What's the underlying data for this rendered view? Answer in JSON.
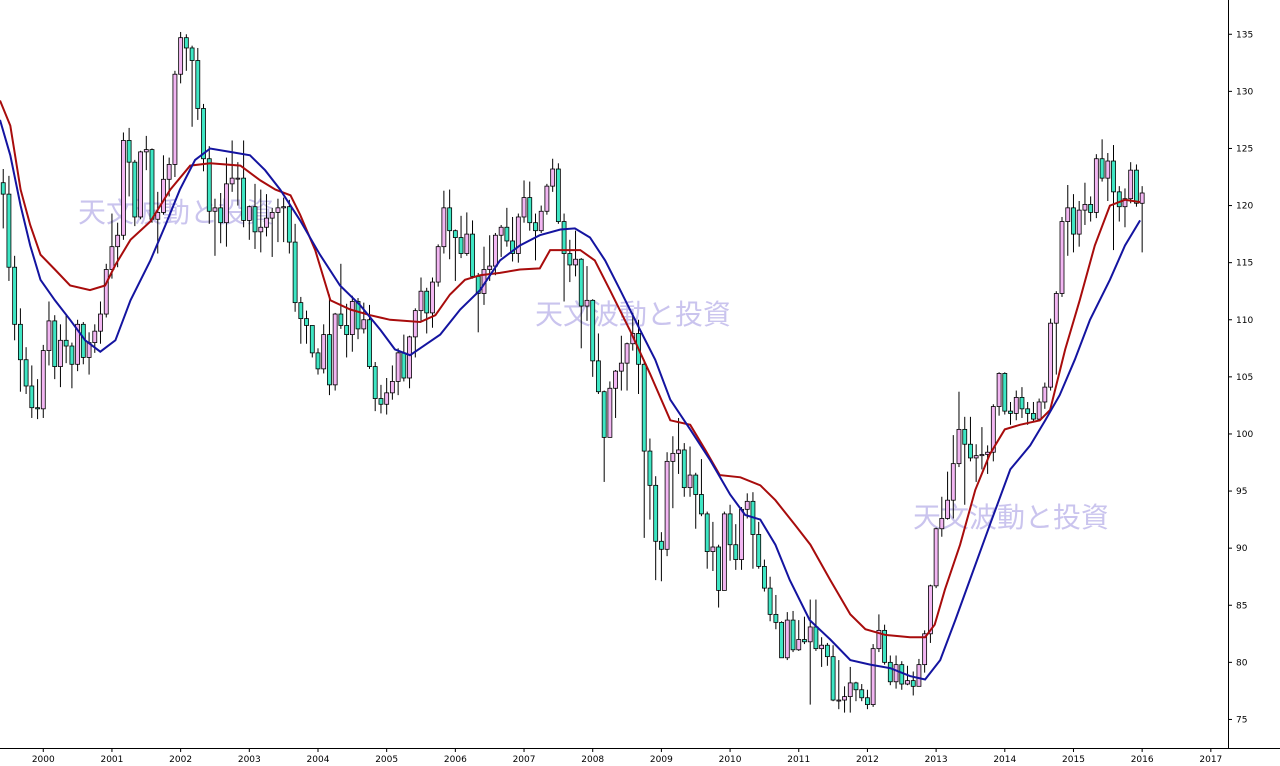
{
  "chart_data": {
    "type": "candlestick",
    "watermarks": [
      "天文波動と投資",
      "天文波動と投資",
      "天文波動と投資"
    ],
    "up_color": "#f2b6f2",
    "down_color": "#3ee6c4",
    "xlim": [
      1999.37,
      2017.25
    ],
    "xticks": [
      2000,
      2001,
      2002,
      2003,
      2004,
      2005,
      2006,
      2007,
      2008,
      2009,
      2010,
      2011,
      2012,
      2013,
      2014,
      2015,
      2016,
      2017
    ],
    "ylim": [
      72.5,
      138
    ],
    "yticks": [
      75,
      80,
      85,
      90,
      95,
      100,
      105,
      110,
      115,
      120,
      125,
      130,
      135
    ],
    "x": [
      1999.417,
      1999.5,
      1999.583,
      1999.667,
      1999.75,
      1999.833,
      1999.917,
      2000,
      2000.083,
      2000.167,
      2000.25,
      2000.333,
      2000.417,
      2000.5,
      2000.583,
      2000.667,
      2000.75,
      2000.833,
      2000.917,
      2001,
      2001.083,
      2001.167,
      2001.25,
      2001.333,
      2001.417,
      2001.5,
      2001.583,
      2001.667,
      2001.75,
      2001.833,
      2001.917,
      2002,
      2002.083,
      2002.167,
      2002.25,
      2002.333,
      2002.417,
      2002.5,
      2002.583,
      2002.667,
      2002.75,
      2002.833,
      2002.917,
      2003,
      2003.083,
      2003.167,
      2003.25,
      2003.333,
      2003.417,
      2003.5,
      2003.583,
      2003.667,
      2003.75,
      2003.833,
      2003.917,
      2004,
      2004.083,
      2004.167,
      2004.25,
      2004.333,
      2004.417,
      2004.5,
      2004.583,
      2004.667,
      2004.75,
      2004.833,
      2004.917,
      2005,
      2005.083,
      2005.167,
      2005.25,
      2005.333,
      2005.417,
      2005.5,
      2005.583,
      2005.667,
      2005.75,
      2005.833,
      2005.917,
      2006,
      2006.083,
      2006.167,
      2006.25,
      2006.333,
      2006.417,
      2006.5,
      2006.583,
      2006.667,
      2006.75,
      2006.833,
      2006.917,
      2007,
      2007.083,
      2007.167,
      2007.25,
      2007.333,
      2007.417,
      2007.5,
      2007.583,
      2007.667,
      2007.75,
      2007.833,
      2007.917,
      2008,
      2008.083,
      2008.167,
      2008.25,
      2008.333,
      2008.417,
      2008.5,
      2008.583,
      2008.667,
      2008.75,
      2008.833,
      2008.917,
      2009,
      2009.083,
      2009.167,
      2009.25,
      2009.333,
      2009.417,
      2009.5,
      2009.583,
      2009.667,
      2009.75,
      2009.833,
      2009.917,
      2010,
      2010.083,
      2010.167,
      2010.25,
      2010.333,
      2010.417,
      2010.5,
      2010.583,
      2010.667,
      2010.75,
      2010.833,
      2010.917,
      2011,
      2011.083,
      2011.167,
      2011.25,
      2011.333,
      2011.417,
      2011.5,
      2011.583,
      2011.667,
      2011.75,
      2011.833,
      2011.917,
      2012,
      2012.083,
      2012.167,
      2012.25,
      2012.333,
      2012.417,
      2012.5,
      2012.583,
      2012.667,
      2012.75,
      2012.833,
      2012.917,
      2013,
      2013.083,
      2013.167,
      2013.25,
      2013.333,
      2013.417,
      2013.5,
      2013.583,
      2013.667,
      2013.75,
      2013.833,
      2013.917,
      2014,
      2014.083,
      2014.167,
      2014.25,
      2014.333,
      2014.417,
      2014.5,
      2014.583,
      2014.667,
      2014.75,
      2014.833,
      2014.917,
      2015,
      2015.083,
      2015.167,
      2015.25,
      2015.333,
      2015.417,
      2015.5,
      2015.583,
      2015.667,
      2015.75,
      2015.833,
      2015.917,
      2016
    ],
    "open": [
      122.0,
      121.0,
      114.6,
      109.6,
      106.5,
      104.2,
      102.3,
      102.2,
      107.3,
      109.9,
      105.9,
      108.2,
      107.7,
      106.1,
      109.6,
      106.7,
      108.0,
      109.0,
      110.5,
      114.4,
      116.4,
      117.4,
      125.7,
      123.8,
      119.0,
      124.7,
      124.9,
      118.8,
      119.4,
      122.3,
      123.6,
      131.5,
      134.7,
      133.8,
      132.7,
      128.5,
      124.1,
      119.5,
      119.8,
      118.5,
      121.9,
      122.4,
      122.4,
      118.7,
      119.9,
      117.7,
      118.1,
      118.9,
      119.4,
      119.8,
      119.9,
      116.8,
      111.5,
      110.1,
      109.5,
      107.1,
      105.7,
      108.7,
      104.3,
      110.5,
      109.5,
      108.7,
      111.6,
      109.2,
      110.0,
      105.9,
      103.1,
      102.6,
      103.6,
      104.6,
      107.1,
      104.9,
      108.5,
      110.8,
      112.5,
      110.6,
      113.3,
      116.4,
      119.8,
      117.8,
      117.2,
      115.8,
      117.5,
      113.8,
      112.3,
      114.4,
      114.7,
      117.4,
      118.1,
      116.9,
      115.8,
      119.0,
      120.7,
      118.5,
      117.8,
      119.5,
      121.7,
      123.2,
      118.6,
      115.8,
      114.8,
      115.3,
      111.2,
      111.7,
      106.4,
      103.7,
      99.7,
      104.0,
      105.5,
      106.2,
      107.9,
      108.8,
      106.1,
      98.5,
      95.5,
      90.6,
      89.9,
      97.6,
      98.3,
      98.6,
      95.3,
      96.4,
      94.7,
      93.0,
      89.7,
      90.1,
      86.3,
      93.0,
      90.3,
      89.0,
      93.4,
      94.1,
      91.2,
      88.4,
      86.5,
      84.2,
      83.5,
      80.4,
      83.7,
      81.1,
      82.0,
      81.8,
      83.1,
      81.2,
      81.5,
      80.5,
      76.7,
      76.7,
      77.0,
      78.2,
      77.6,
      76.9,
      76.3,
      81.2,
      82.8,
      80.0,
      78.3,
      79.8,
      78.1,
      78.4,
      77.9,
      79.8,
      82.5,
      86.7,
      91.7,
      92.6,
      94.2,
      97.4,
      100.4,
      99.1,
      97.9,
      98.1,
      98.2,
      98.4,
      102.4,
      105.3,
      102.0,
      101.8,
      103.2,
      102.2,
      101.8,
      101.3,
      102.8,
      104.1,
      109.7,
      112.3,
      118.6,
      119.8,
      117.5,
      119.6,
      120.1,
      119.4,
      124.1,
      122.4,
      123.9,
      121.2,
      119.9,
      120.6,
      123.1,
      120.2
    ],
    "high": [
      123.2,
      122.6,
      115.6,
      111.0,
      107.6,
      106.0,
      104.8,
      107.8,
      111.6,
      110.4,
      109.6,
      110.5,
      108.0,
      110.0,
      109.8,
      108.9,
      109.6,
      111.6,
      114.9,
      119.3,
      118.5,
      126.4,
      126.8,
      124.0,
      124.8,
      126.1,
      125.0,
      121.2,
      124.4,
      124.2,
      131.8,
      135.2,
      135.0,
      134.0,
      133.8,
      128.9,
      125.2,
      120.6,
      121.1,
      124.2,
      125.7,
      123.8,
      125.7,
      120.0,
      121.9,
      121.4,
      121.0,
      119.8,
      120.6,
      120.7,
      120.5,
      118.4,
      112.0,
      110.8,
      109.5,
      107.5,
      109.6,
      112.2,
      110.6,
      114.9,
      111.4,
      112.1,
      111.9,
      111.5,
      111.3,
      106.3,
      104.3,
      104.9,
      106.0,
      107.5,
      108.7,
      108.6,
      111.0,
      113.7,
      112.8,
      113.7,
      116.6,
      121.3,
      121.4,
      117.9,
      119.1,
      119.4,
      118.7,
      114.1,
      116.4,
      117.4,
      117.6,
      118.3,
      119.8,
      119.0,
      119.3,
      122.2,
      122.1,
      119.3,
      120.0,
      121.9,
      124.1,
      123.7,
      119.3,
      117.0,
      117.8,
      115.4,
      114.7,
      111.8,
      108.8,
      103.8,
      104.6,
      105.6,
      108.6,
      108.0,
      110.6,
      110.0,
      106.5,
      99.6,
      96.3,
      91.4,
      98.4,
      99.8,
      101.4,
      99.2,
      98.9,
      96.6,
      97.8,
      93.2,
      92.3,
      90.3,
      93.2,
      93.8,
      92.1,
      93.6,
      94.8,
      94.9,
      92.3,
      89.0,
      87.5,
      85.9,
      83.6,
      84.4,
      84.5,
      83.7,
      84.0,
      85.5,
      85.5,
      82.2,
      81.7,
      81.5,
      80.2,
      77.9,
      79.6,
      78.3,
      78.1,
      77.6,
      81.6,
      84.2,
      83.3,
      80.6,
      80.6,
      80.1,
      79.7,
      79.2,
      80.3,
      82.8,
      86.8,
      91.8,
      94.5,
      96.7,
      99.9,
      103.7,
      101.5,
      101.5,
      99.1,
      100.6,
      99.0,
      102.6,
      105.4,
      105.4,
      102.8,
      103.8,
      104.1,
      102.8,
      102.8,
      103.1,
      104.5,
      110.1,
      112.5,
      119.0,
      121.8,
      121.0,
      120.4,
      122.0,
      120.8,
      124.5,
      125.8,
      124.6,
      125.3,
      121.7,
      121.5,
      123.8,
      123.6,
      121.7
    ],
    "low": [
      118.0,
      113.4,
      108.2,
      103.7,
      103.5,
      101.4,
      101.3,
      101.4,
      106.0,
      104.8,
      104.1,
      106.2,
      104.0,
      105.5,
      106.1,
      105.2,
      107.1,
      107.9,
      110.2,
      113.6,
      114.6,
      117.0,
      120.8,
      118.2,
      118.8,
      123.1,
      118.5,
      115.8,
      119.2,
      120.8,
      122.5,
      130.7,
      131.8,
      126.9,
      127.5,
      123.0,
      118.4,
      115.6,
      116.7,
      116.4,
      121.2,
      120.0,
      118.1,
      117.0,
      116.2,
      115.9,
      117.3,
      115.5,
      116.8,
      116.8,
      115.8,
      110.7,
      107.9,
      107.9,
      106.7,
      105.2,
      105.3,
      103.4,
      103.8,
      109.2,
      106.7,
      107.2,
      108.3,
      108.8,
      105.7,
      102.0,
      101.8,
      101.7,
      103.0,
      103.4,
      104.6,
      104.0,
      106.7,
      109.8,
      108.8,
      109.3,
      112.9,
      115.8,
      115.3,
      113.4,
      115.4,
      115.6,
      113.6,
      108.9,
      111.3,
      113.4,
      113.9,
      115.5,
      116.4,
      115.1,
      115.0,
      118.5,
      117.8,
      115.2,
      117.6,
      119.2,
      121.2,
      118.4,
      111.6,
      113.3,
      113.8,
      107.5,
      109.9,
      105.0,
      103.5,
      95.8,
      99.7,
      101.4,
      103.8,
      103.8,
      107.3,
      103.5,
      90.9,
      92.5,
      87.2,
      87.1,
      89.3,
      93.5,
      96.5,
      94.5,
      94.5,
      91.7,
      92.8,
      88.2,
      88.0,
      84.8,
      86.3,
      88.9,
      88.1,
      88.1,
      92.6,
      88.2,
      88.2,
      86.2,
      83.6,
      82.9,
      80.4,
      80.2,
      80.9,
      81.0,
      81.6,
      76.3,
      81.0,
      79.6,
      79.7,
      76.6,
      75.9,
      75.6,
      75.6,
      76.6,
      76.6,
      75.9,
      76.1,
      80.9,
      79.8,
      78.0,
      77.7,
      77.6,
      78.0,
      77.1,
      77.9,
      79.1,
      81.7,
      86.5,
      91.0,
      92.5,
      92.6,
      97.1,
      93.8,
      97.6,
      95.8,
      96.9,
      96.5,
      97.6,
      101.6,
      101.7,
      100.8,
      101.2,
      101.4,
      100.8,
      101.1,
      101.1,
      102.2,
      103.8,
      105.2,
      112.0,
      115.6,
      115.9,
      116.4,
      118.3,
      118.6,
      118.9,
      122.1,
      120.4,
      116.1,
      118.6,
      118.1,
      120.2,
      119.9,
      115.9
    ],
    "close": [
      121.0,
      114.6,
      109.6,
      106.5,
      104.2,
      102.3,
      102.2,
      107.3,
      109.9,
      105.9,
      108.2,
      107.7,
      106.1,
      109.6,
      106.7,
      108.0,
      109.0,
      110.5,
      114.4,
      116.4,
      117.4,
      125.7,
      123.8,
      119.0,
      124.7,
      124.9,
      118.8,
      119.4,
      122.3,
      123.6,
      131.5,
      134.7,
      133.8,
      132.7,
      128.5,
      124.1,
      119.5,
      119.8,
      118.5,
      121.9,
      122.4,
      122.4,
      118.7,
      119.9,
      117.7,
      118.1,
      118.9,
      119.4,
      119.8,
      119.9,
      116.8,
      111.5,
      110.1,
      109.5,
      107.1,
      105.7,
      108.7,
      104.3,
      110.5,
      109.5,
      108.7,
      111.6,
      109.2,
      110.0,
      105.9,
      103.1,
      102.6,
      103.6,
      104.6,
      107.1,
      104.9,
      108.5,
      110.8,
      112.5,
      110.6,
      113.3,
      116.4,
      119.8,
      117.8,
      117.2,
      115.8,
      117.5,
      113.8,
      112.3,
      114.4,
      114.7,
      117.4,
      118.1,
      116.9,
      115.8,
      119.0,
      120.7,
      118.5,
      117.8,
      119.5,
      121.7,
      123.2,
      118.6,
      115.8,
      114.8,
      115.3,
      111.2,
      111.7,
      106.4,
      103.7,
      99.7,
      104.0,
      105.5,
      106.2,
      107.9,
      108.8,
      106.1,
      98.5,
      95.5,
      90.6,
      89.9,
      97.6,
      98.3,
      98.6,
      95.3,
      96.4,
      94.7,
      93.0,
      89.7,
      90.1,
      86.3,
      93.0,
      90.3,
      89.0,
      93.4,
      94.1,
      91.2,
      88.4,
      86.5,
      84.2,
      83.5,
      80.4,
      83.7,
      81.1,
      82.0,
      81.8,
      83.1,
      81.2,
      81.5,
      80.5,
      76.7,
      76.7,
      77.0,
      78.2,
      77.6,
      76.9,
      76.3,
      81.2,
      82.8,
      80.0,
      78.3,
      79.8,
      78.1,
      78.4,
      77.9,
      79.8,
      82.5,
      86.7,
      91.7,
      92.6,
      94.2,
      97.4,
      100.4,
      99.1,
      97.9,
      98.1,
      98.2,
      98.4,
      102.4,
      105.3,
      102.0,
      101.8,
      103.2,
      102.2,
      101.8,
      101.3,
      102.8,
      104.1,
      109.7,
      112.3,
      118.6,
      119.8,
      117.5,
      119.6,
      120.1,
      119.4,
      124.1,
      122.4,
      123.9,
      121.2,
      119.9,
      120.6,
      123.1,
      120.2,
      121.1
    ],
    "lines": [
      {
        "color": "#a80c0c",
        "x": [
          1999.37,
          1999.52,
          1999.67,
          1999.81,
          1999.96,
          2000.17,
          2000.39,
          2000.68,
          2000.9,
          2001.05,
          2001.27,
          2001.56,
          2001.85,
          2002.14,
          2002.43,
          2002.87,
          2003.16,
          2003.38,
          2003.6,
          2003.74,
          2003.96,
          2004.18,
          2004.47,
          2004.76,
          2005.05,
          2005.49,
          2005.71,
          2005.92,
          2006.14,
          2006.36,
          2006.65,
          2006.94,
          2007.23,
          2007.38,
          2007.82,
          2008.03,
          2008.25,
          2008.54,
          2008.84,
          2009.13,
          2009.42,
          2009.64,
          2009.85,
          2010.15,
          2010.44,
          2010.66,
          2010.95,
          2011.17,
          2011.46,
          2011.75,
          2011.97,
          2012.26,
          2012.62,
          2012.84,
          2012.98,
          2013.13,
          2013.35,
          2013.57,
          2013.78,
          2014.0,
          2014.22,
          2014.51,
          2014.66,
          2014.88,
          2015.09,
          2015.31,
          2015.53,
          2015.75,
          2015.97
        ],
        "values": [
          129.2,
          127.0,
          121.4,
          118.3,
          115.7,
          114.4,
          113.0,
          112.6,
          113.0,
          114.8,
          117.0,
          118.6,
          121.4,
          123.5,
          123.7,
          123.5,
          122.2,
          121.4,
          120.9,
          119.2,
          116.1,
          111.7,
          110.9,
          110.4,
          110.0,
          109.8,
          110.4,
          112.2,
          113.5,
          113.9,
          114.1,
          114.4,
          114.5,
          116.1,
          116.1,
          115.2,
          112.6,
          109.1,
          105.2,
          101.2,
          100.8,
          98.6,
          96.4,
          96.2,
          95.5,
          94.2,
          92.0,
          90.3,
          87.2,
          84.2,
          82.9,
          82.4,
          82.2,
          82.2,
          83.3,
          86.4,
          90.3,
          95.1,
          98.2,
          100.4,
          100.8,
          101.2,
          102.1,
          107.4,
          111.7,
          116.5,
          120.0,
          120.5,
          120.3
        ]
      },
      {
        "color": "#1414a0",
        "x": [
          1999.37,
          1999.52,
          1999.67,
          1999.81,
          1999.96,
          2000.17,
          2000.39,
          2000.61,
          2000.83,
          2001.05,
          2001.27,
          2001.56,
          2001.78,
          2001.99,
          2002.21,
          2002.43,
          2002.72,
          2003.01,
          2003.23,
          2003.45,
          2003.74,
          2004.03,
          2004.32,
          2004.61,
          2004.91,
          2005.12,
          2005.34,
          2005.56,
          2005.78,
          2006.07,
          2006.36,
          2006.65,
          2006.94,
          2007.23,
          2007.53,
          2007.74,
          2007.96,
          2008.18,
          2008.4,
          2008.69,
          2008.91,
          2009.13,
          2009.42,
          2009.71,
          2010.0,
          2010.22,
          2010.44,
          2010.66,
          2010.87,
          2011.16,
          2011.46,
          2011.75,
          2012.04,
          2012.33,
          2012.62,
          2012.84,
          2013.06,
          2013.28,
          2013.49,
          2013.78,
          2014.08,
          2014.37,
          2014.59,
          2014.8,
          2015.02,
          2015.24,
          2015.53,
          2015.75,
          2015.97
        ],
        "values": [
          127.5,
          124.4,
          120.0,
          116.5,
          113.5,
          111.7,
          110.0,
          108.2,
          107.2,
          108.2,
          111.7,
          115.2,
          118.3,
          121.4,
          124.0,
          125.0,
          124.7,
          124.4,
          123.1,
          121.4,
          118.7,
          115.7,
          113.0,
          111.3,
          109.1,
          107.4,
          106.9,
          107.8,
          108.7,
          110.9,
          112.6,
          115.2,
          116.5,
          117.4,
          117.9,
          118.0,
          117.2,
          115.2,
          112.6,
          109.1,
          106.5,
          103.0,
          100.4,
          97.7,
          94.7,
          92.9,
          92.5,
          90.3,
          87.2,
          83.7,
          82.0,
          80.2,
          79.8,
          79.5,
          78.8,
          78.5,
          80.2,
          83.7,
          87.2,
          92.0,
          96.9,
          99.0,
          101.2,
          103.4,
          106.5,
          110.0,
          113.5,
          116.5,
          118.7
        ]
      }
    ]
  }
}
